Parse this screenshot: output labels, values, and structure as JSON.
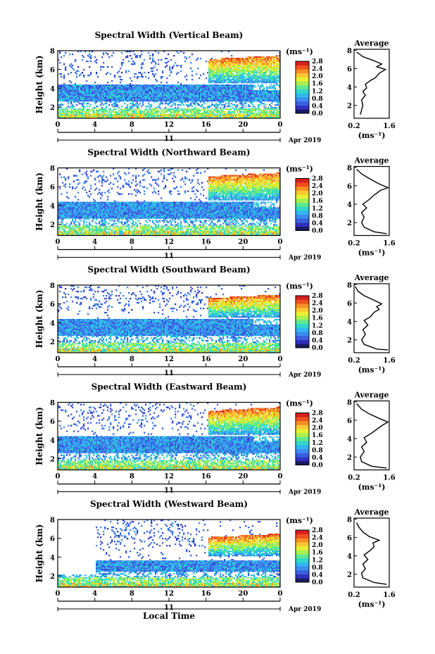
{
  "panels": [
    {
      "title": "Spectral Width (Vertical Beam)",
      "beam": "vertical",
      "avg_profile": [
        [
          0.45,
          1.0
        ],
        [
          0.5,
          1.5
        ],
        [
          0.55,
          2.0
        ],
        [
          0.5,
          2.6
        ],
        [
          0.65,
          3.1
        ],
        [
          0.55,
          3.5
        ],
        [
          0.7,
          3.9
        ],
        [
          0.65,
          4.3
        ],
        [
          0.85,
          4.7
        ],
        [
          1.05,
          5.0
        ],
        [
          1.2,
          5.5
        ],
        [
          1.45,
          5.9
        ],
        [
          1.1,
          6.2
        ],
        [
          1.3,
          6.5
        ],
        [
          0.95,
          6.9
        ],
        [
          0.55,
          7.3
        ],
        [
          0.3,
          7.8
        ]
      ]
    },
    {
      "title": "Spectral Width (Northward Beam)",
      "beam": "northward",
      "avg_profile": [
        [
          1.5,
          0.8
        ],
        [
          1.0,
          1.0
        ],
        [
          0.6,
          1.5
        ],
        [
          0.5,
          2.0
        ],
        [
          0.6,
          2.6
        ],
        [
          0.5,
          3.1
        ],
        [
          0.7,
          3.6
        ],
        [
          0.55,
          4.0
        ],
        [
          0.8,
          4.5
        ],
        [
          1.0,
          5.0
        ],
        [
          1.25,
          5.5
        ],
        [
          1.55,
          5.8
        ],
        [
          1.2,
          6.2
        ],
        [
          0.8,
          6.8
        ],
        [
          0.5,
          7.3
        ],
        [
          0.3,
          7.8
        ]
      ]
    },
    {
      "title": "Spectral Width (Southward Beam)",
      "beam": "southward",
      "avg_profile": [
        [
          1.55,
          0.9
        ],
        [
          1.1,
          1.0
        ],
        [
          0.6,
          1.5
        ],
        [
          0.5,
          2.0
        ],
        [
          0.65,
          2.6
        ],
        [
          0.55,
          3.1
        ],
        [
          0.75,
          3.6
        ],
        [
          0.6,
          4.1
        ],
        [
          0.85,
          4.5
        ],
        [
          1.0,
          5.0
        ],
        [
          1.2,
          5.3
        ],
        [
          1.1,
          5.6
        ],
        [
          1.3,
          5.9
        ],
        [
          1.0,
          6.3
        ],
        [
          0.6,
          6.8
        ],
        [
          0.35,
          7.3
        ],
        [
          0.25,
          7.8
        ]
      ]
    },
    {
      "title": "Spectral Width (Eastward Beam)",
      "beam": "eastward",
      "avg_profile": [
        [
          1.5,
          0.8
        ],
        [
          0.9,
          1.0
        ],
        [
          0.5,
          1.5
        ],
        [
          0.45,
          2.0
        ],
        [
          0.6,
          2.6
        ],
        [
          0.5,
          3.1
        ],
        [
          0.7,
          3.6
        ],
        [
          0.6,
          4.1
        ],
        [
          0.9,
          4.6
        ],
        [
          1.1,
          5.0
        ],
        [
          1.35,
          5.5
        ],
        [
          1.55,
          5.8
        ],
        [
          1.2,
          6.2
        ],
        [
          0.8,
          6.7
        ],
        [
          0.5,
          7.2
        ],
        [
          0.3,
          7.8
        ]
      ]
    },
    {
      "title": "Spectral Width (Westward Beam)",
      "beam": "westward",
      "avg_profile": [
        [
          1.5,
          0.9
        ],
        [
          1.0,
          1.1
        ],
        [
          0.55,
          1.6
        ],
        [
          0.5,
          2.1
        ],
        [
          0.65,
          2.6
        ],
        [
          0.55,
          3.1
        ],
        [
          0.75,
          3.6
        ],
        [
          0.6,
          4.1
        ],
        [
          0.85,
          4.6
        ],
        [
          1.0,
          5.0
        ],
        [
          0.95,
          5.4
        ],
        [
          1.2,
          5.7
        ],
        [
          0.8,
          6.1
        ],
        [
          0.55,
          6.6
        ],
        [
          0.4,
          7.1
        ],
        [
          0.3,
          7.6
        ]
      ]
    }
  ],
  "axes": {
    "ylabel": "Height (km)",
    "yticks": [
      "2",
      "4",
      "6",
      "8"
    ],
    "xticks": [
      "0",
      "4",
      "8",
      "12",
      "16",
      "20",
      "0"
    ],
    "date_day": "11",
    "date_label": "Apr 2019",
    "xlabel": "Local Time"
  },
  "colorbar": {
    "unit": "(ms⁻¹)",
    "ticks": [
      "0.0",
      "0.4",
      "0.8",
      "1.2",
      "1.6",
      "2.0",
      "2.4",
      "2.8"
    ],
    "colors": [
      "#1a1a60",
      "#3030c0",
      "#3a60e0",
      "#3c8cf0",
      "#30b8f0",
      "#30d8c8",
      "#60e890",
      "#a8f050",
      "#e8f030",
      "#f8c830",
      "#f89028",
      "#f05020",
      "#d82020"
    ]
  },
  "average": {
    "title": "Average",
    "xticks": [
      "0.2",
      "1.6"
    ],
    "unit": "(ms⁻¹)",
    "yticks": [
      "2",
      "4",
      "6",
      "8"
    ]
  },
  "chart_data": {
    "type": "heatmap",
    "title": "Spectral Width",
    "xlabel": "Local Time",
    "ylabel": "Height (km)",
    "xlim": [
      0,
      24
    ],
    "ylim": [
      0.8,
      8
    ],
    "clim": [
      0.0,
      2.8
    ],
    "colorbar_unit": "ms⁻¹",
    "date": "11 Apr 2019",
    "series": [
      {
        "name": "Vertical Beam"
      },
      {
        "name": "Northward Beam"
      },
      {
        "name": "Southward Beam"
      },
      {
        "name": "Eastward Beam"
      },
      {
        "name": "Westward Beam"
      }
    ],
    "average_profile": {
      "title": "Average",
      "xlim": [
        0.2,
        1.6
      ],
      "unit": "ms⁻¹"
    }
  }
}
